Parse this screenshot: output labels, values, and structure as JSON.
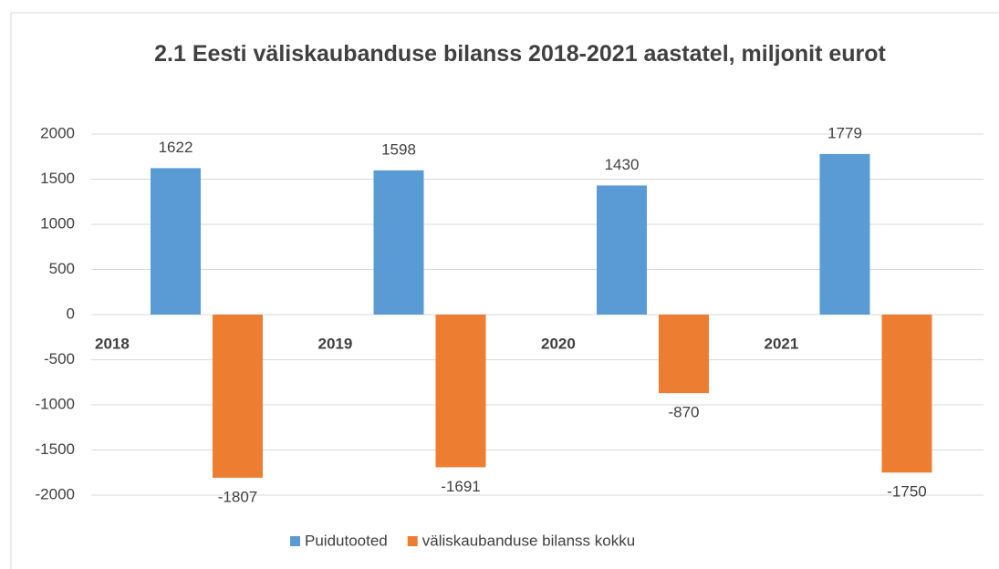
{
  "chart_data": {
    "type": "bar",
    "title": "2.1 Eesti väliskaubanduse  bilanss 2018-2021 aastatel, miljonit eurot",
    "categories": [
      "2018",
      "2019",
      "2020",
      "2021"
    ],
    "series": [
      {
        "name": "Puidutooted",
        "color": "#5b9bd5",
        "values": [
          1622,
          1598,
          1430,
          1779
        ]
      },
      {
        "name": "väliskaubanduse bilanss kokku",
        "color": "#ed7d31",
        "values": [
          -1807,
          -1691,
          -870,
          -1750
        ]
      }
    ],
    "ylim": [
      -2000,
      2000
    ],
    "yticks": [
      -2000,
      -1500,
      -1000,
      -500,
      0,
      500,
      1000,
      1500,
      2000
    ],
    "grid": true,
    "legend": "bottom"
  }
}
